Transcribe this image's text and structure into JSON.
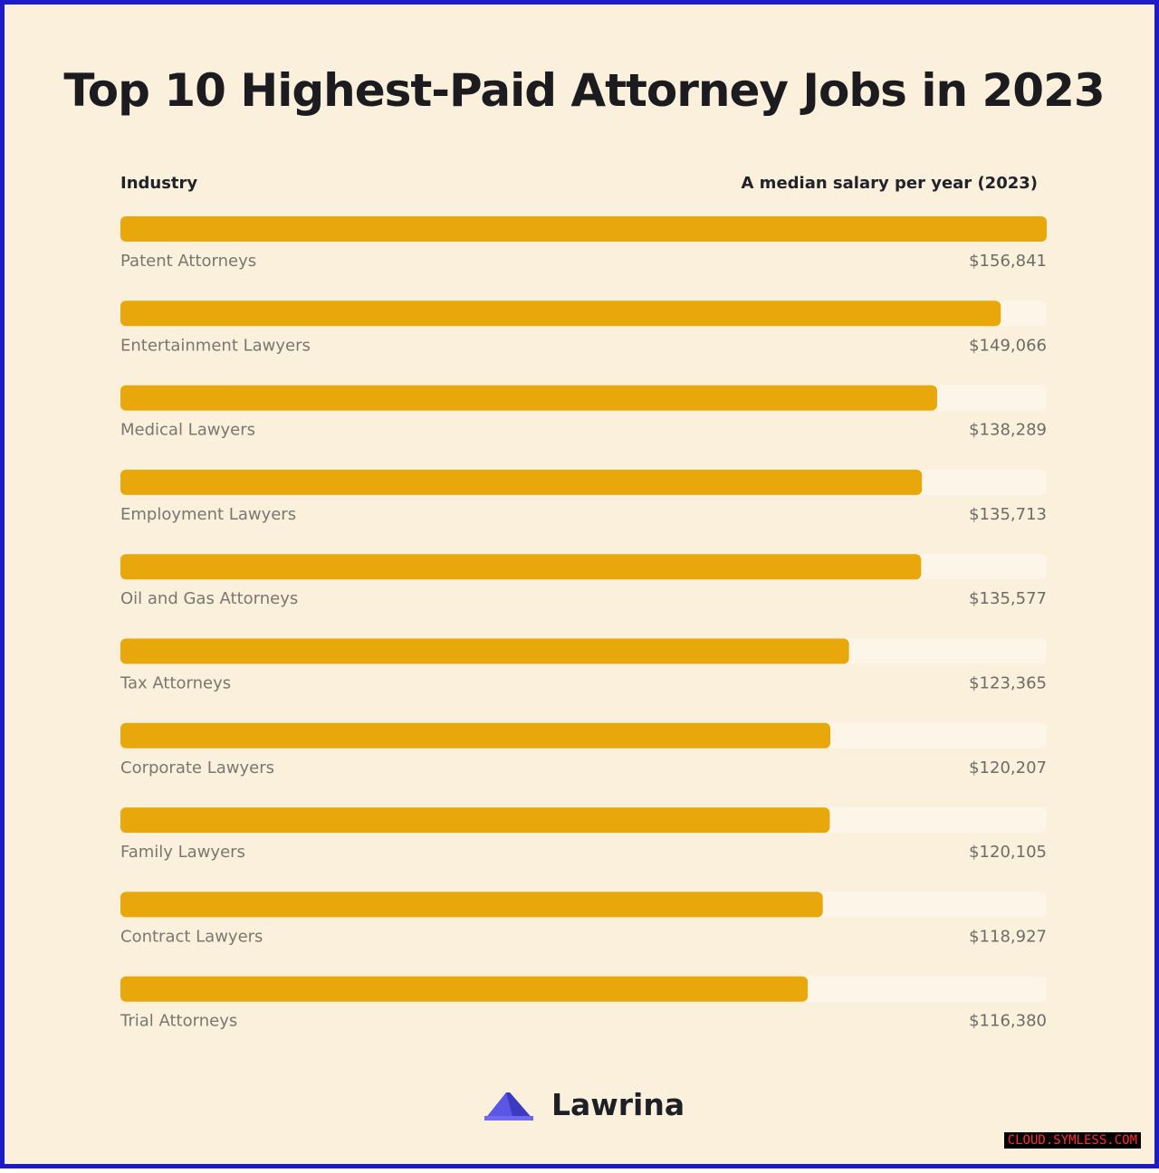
{
  "chart_data": {
    "type": "bar",
    "orientation": "horizontal",
    "title": "Top 10 Highest-Paid Attorney Jobs in 2023",
    "category_header": "Industry",
    "value_header": "A median salary per year (2023)",
    "categories": [
      "Patent Attorneys",
      "Entertainment Lawyers",
      "Medical Lawyers",
      "Employment Lawyers",
      "Oil and Gas Attorneys",
      "Tax Attorneys",
      "Corporate Lawyers",
      "Family Lawyers",
      "Contract Lawyers",
      "Trial Attorneys"
    ],
    "values": [
      156841,
      149066,
      138289,
      135713,
      135577,
      123365,
      120207,
      120105,
      118927,
      116380
    ],
    "value_labels": [
      "$156,841",
      "$149,066",
      "$138,289",
      "$135,713",
      "$135,577",
      "$123,365",
      "$120,207",
      "$120,105",
      "$118,927",
      "$116,380"
    ],
    "xlim": [
      0,
      156841
    ],
    "grid": false,
    "legend": "none",
    "colors": {
      "bar": "#e8a80c",
      "track": "#fdf6e8",
      "background": "#faf0dc",
      "label": "#7a7670",
      "value": "#6f6b66"
    }
  },
  "brand": {
    "name": "Lawrina",
    "logo_icon": "lawrina-roof-logo",
    "logo_color": "#4f4fe0"
  },
  "watermark": "CLOUD.SYMLESS.COM"
}
